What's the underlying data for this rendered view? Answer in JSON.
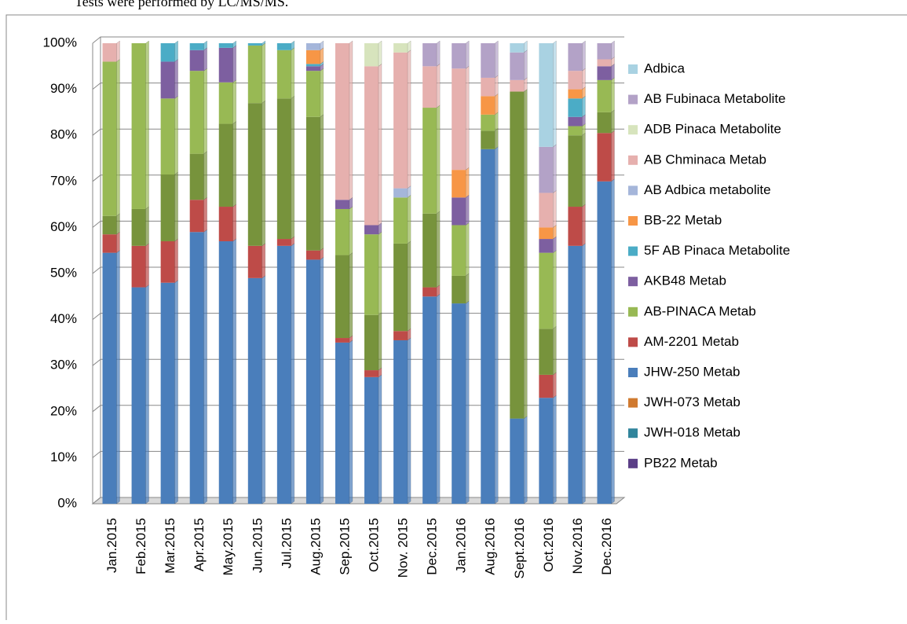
{
  "chart_data": {
    "type": "bar",
    "stacked": true,
    "subtitle": "Tests were performed by LC/MS/MS.",
    "categories": [
      "Jan.2015",
      "Feb.2015",
      "Mar.2015",
      "Apr.2015",
      "May.2015",
      "Jun.2015",
      "Jul.2015",
      "Aug.2015",
      "Sep.2015",
      "Oct.2015",
      "Nov. 2015",
      "Dec.2015",
      "Jan.2016",
      "Aug.2016",
      "Sept.2016",
      "Oct.2016",
      "Nov.2016",
      "Dec.2016"
    ],
    "ylim": [
      0,
      100
    ],
    "yticks": [
      {
        "value": 0,
        "label": "0%"
      },
      {
        "value": 10,
        "label": "10%"
      },
      {
        "value": 20,
        "label": "20%"
      },
      {
        "value": 30,
        "label": "30%"
      },
      {
        "value": 40,
        "label": "40%"
      },
      {
        "value": 50,
        "label": "50%"
      },
      {
        "value": 60,
        "label": "60%"
      },
      {
        "value": 70,
        "label": "70%"
      },
      {
        "value": 80,
        "label": "80%"
      },
      {
        "value": 90,
        "label": "90%"
      },
      {
        "value": 100,
        "label": "100%"
      }
    ],
    "grid": true,
    "legend": "right",
    "series": [
      {
        "name": "Adbica",
        "color": "#a9d2e2",
        "values": [
          0,
          0,
          0,
          0,
          0,
          0,
          0,
          0,
          0,
          0,
          0,
          0,
          0,
          0,
          2,
          22.5,
          0,
          0
        ]
      },
      {
        "name": "AB Fubinaca Metabolite",
        "color": "#b3a2c7",
        "values": [
          0,
          0,
          0,
          0,
          0,
          0,
          0,
          0,
          0,
          0,
          0,
          5,
          5.5,
          7.5,
          6,
          10,
          6,
          3.5
        ]
      },
      {
        "name": "ADB Pinaca Metabolite",
        "color": "#d7e4bd",
        "values": [
          0,
          0,
          0,
          0,
          0,
          0,
          0,
          0,
          0,
          5,
          2,
          0,
          0,
          0,
          0,
          0,
          0,
          0
        ]
      },
      {
        "name": "AB Chminaca Metab",
        "color": "#e6b0ae",
        "values": [
          4,
          0,
          0,
          0,
          0,
          0,
          0,
          0,
          34,
          34.5,
          29.5,
          9,
          22,
          4,
          2.5,
          7.5,
          4,
          1.5
        ]
      },
      {
        "name": "AB Adbica metabolite",
        "color": "#a5b6da",
        "values": [
          0,
          0,
          0,
          0,
          0,
          0,
          0,
          1.5,
          0,
          0,
          2,
          0,
          0,
          0,
          0,
          0,
          0,
          0
        ]
      },
      {
        "name": "BB-22 Metab",
        "color": "#f79646",
        "values": [
          0,
          0,
          0,
          0,
          0,
          0,
          0,
          3,
          0,
          0,
          0,
          0,
          6,
          4,
          0,
          2.5,
          2,
          0
        ]
      },
      {
        "name": "5F AB Pinaca Metabolite",
        "color": "#4bacc6",
        "values": [
          0,
          0,
          4,
          1.5,
          1,
          0.5,
          1.5,
          0.5,
          0,
          0,
          0,
          0,
          0,
          0,
          0,
          0,
          4,
          0
        ]
      },
      {
        "name": "AKB48 Metab",
        "color": "#7d5fa0",
        "values": [
          0,
          0,
          8,
          4.5,
          7.5,
          0,
          0,
          1,
          2,
          2,
          0,
          0,
          6,
          0,
          0,
          3,
          2,
          3
        ]
      },
      {
        "name": "AB-PINACA Metab",
        "color": "#98b954",
        "values": [
          33.5,
          36,
          16.5,
          18,
          9,
          12.5,
          10.5,
          10,
          10,
          17.5,
          10,
          23,
          11,
          3.5,
          0,
          16.5,
          2,
          7
        ]
      },
      {
        "name": null,
        "color": "#77933c",
        "values": [
          4,
          8,
          14.5,
          10,
          18,
          31,
          30.5,
          29,
          18,
          12,
          19,
          16,
          6,
          4,
          71,
          10,
          15.5,
          4.5
        ]
      },
      {
        "name": "AM-2201 Metab",
        "color": "#be4b48",
        "values": [
          4,
          9,
          9,
          7,
          7.5,
          7,
          1.5,
          2,
          1,
          1.5,
          2,
          2,
          0,
          0,
          0,
          5,
          8.5,
          10.5
        ]
      },
      {
        "name": "JHW-250 Metab",
        "color": "#4a7ebb",
        "values": [
          54.5,
          47,
          48,
          59,
          57,
          49,
          56,
          53,
          35,
          27.5,
          35.5,
          45,
          43.5,
          77,
          18.5,
          23,
          56,
          70
        ]
      },
      {
        "name": "JWH-073 Metab",
        "color": "#d07a30",
        "values": [
          0,
          0,
          0,
          0,
          0,
          0,
          0,
          0,
          0,
          0,
          0,
          0,
          0,
          0,
          0,
          0,
          0,
          0
        ]
      },
      {
        "name": "JWH-018 Metab",
        "color": "#31859c",
        "values": [
          0,
          0,
          0,
          0,
          0,
          0,
          0,
          0,
          0,
          0,
          0,
          0,
          0,
          0,
          0,
          0,
          0,
          0
        ]
      },
      {
        "name": "PB22 Metab",
        "color": "#5b3f87",
        "values": [
          0,
          0,
          0,
          0,
          0,
          0,
          0,
          0,
          0,
          0,
          0,
          0,
          0,
          0,
          0,
          0,
          0,
          0
        ]
      }
    ]
  }
}
